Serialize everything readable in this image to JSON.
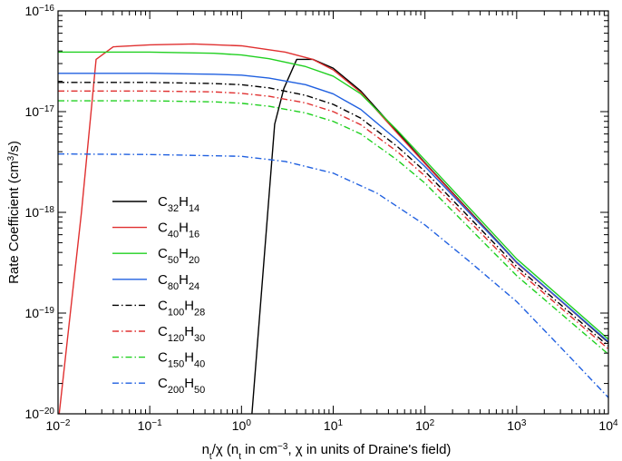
{
  "chart_data": {
    "type": "line",
    "title": "",
    "xlabel": {
      "parts": [
        {
          "t": "n",
          "s": "n"
        },
        {
          "t": "t",
          "s": "sub"
        },
        {
          "t": "/χ (n",
          "s": "n"
        },
        {
          "t": "t",
          "s": "sub"
        },
        {
          "t": " in cm",
          "s": "n"
        },
        {
          "t": "−3",
          "s": "sup"
        },
        {
          "t": ", χ in units of Draine's field)",
          "s": "n"
        }
      ]
    },
    "ylabel": {
      "parts": [
        {
          "t": "Rate Coefficient (cm",
          "s": "n"
        },
        {
          "t": "3",
          "s": "sup"
        },
        {
          "t": "/s)",
          "s": "n"
        }
      ]
    },
    "x_scale": "log",
    "y_scale": "log",
    "xlim": [
      0.01,
      10000
    ],
    "ylim": [
      1e-20,
      1e-16
    ],
    "x_ticks": [
      {
        "value": 0.01,
        "base": "10",
        "exp": "−2"
      },
      {
        "value": 0.1,
        "base": "10",
        "exp": "−1"
      },
      {
        "value": 1,
        "base": "10",
        "exp": "0"
      },
      {
        "value": 10,
        "base": "10",
        "exp": "1"
      },
      {
        "value": 100,
        "base": "10",
        "exp": "2"
      },
      {
        "value": 1000,
        "base": "10",
        "exp": "3"
      },
      {
        "value": 10000,
        "base": "10",
        "exp": "4"
      }
    ],
    "y_ticks": [
      {
        "value": 1e-20,
        "base": "10",
        "exp": "−20"
      },
      {
        "value": 1e-19,
        "base": "10",
        "exp": "−19"
      },
      {
        "value": 1e-18,
        "base": "10",
        "exp": "−18"
      },
      {
        "value": 1e-17,
        "base": "10",
        "exp": "−17"
      },
      {
        "value": 1e-16,
        "base": "10",
        "exp": "−16"
      }
    ],
    "grid": false,
    "legend_position": "lower-left",
    "series": [
      {
        "name_parts": [
          {
            "t": "C",
            "s": "n"
          },
          {
            "t": "32",
            "s": "sub"
          },
          {
            "t": "H",
            "s": "n"
          },
          {
            "t": "14",
            "s": "sub"
          }
        ],
        "color": "#000000",
        "dash": "solid",
        "x": [
          1.3,
          2.3,
          2.9,
          4,
          6,
          10,
          20,
          50,
          100,
          1000,
          10000
        ],
        "y": [
          1e-20,
          7.5e-18,
          1.7e-17,
          3.3e-17,
          3.3e-17,
          2.7e-17,
          1.6e-17,
          6.3e-18,
          3.1e-18,
          3.2e-19,
          5.1e-20
        ]
      },
      {
        "name_parts": [
          {
            "t": "C",
            "s": "n"
          },
          {
            "t": "40",
            "s": "sub"
          },
          {
            "t": "H",
            "s": "n"
          },
          {
            "t": "16",
            "s": "sub"
          }
        ],
        "color": "#e03030",
        "dash": "solid",
        "x": [
          0.0103,
          0.018,
          0.026,
          0.04,
          0.1,
          0.3,
          1,
          3,
          6,
          10,
          20,
          50,
          100,
          1000,
          10000
        ],
        "y": [
          1e-20,
          1e-18,
          3.3e-17,
          4.4e-17,
          4.6e-17,
          4.7e-17,
          4.5e-17,
          3.9e-17,
          3.3e-17,
          2.6e-17,
          1.55e-17,
          6.1e-18,
          3.05e-18,
          3.15e-19,
          5.2e-20
        ]
      },
      {
        "name_parts": [
          {
            "t": "C",
            "s": "n"
          },
          {
            "t": "50",
            "s": "sub"
          },
          {
            "t": "H",
            "s": "n"
          },
          {
            "t": "20",
            "s": "sub"
          }
        ],
        "color": "#20d020",
        "dash": "solid",
        "x": [
          0.01,
          0.1,
          0.5,
          1,
          2,
          5,
          10,
          20,
          50,
          100,
          1000,
          10000
        ],
        "y": [
          3.9e-17,
          3.9e-17,
          3.8e-17,
          3.65e-17,
          3.35e-17,
          2.8e-17,
          2.25e-17,
          1.5e-17,
          6.5e-18,
          3.3e-18,
          3.45e-19,
          5.5e-20
        ]
      },
      {
        "name_parts": [
          {
            "t": "C",
            "s": "n"
          },
          {
            "t": "80",
            "s": "sub"
          },
          {
            "t": "H",
            "s": "n"
          },
          {
            "t": "24",
            "s": "sub"
          }
        ],
        "color": "#2060e0",
        "dash": "solid",
        "x": [
          0.01,
          0.1,
          0.5,
          1,
          2,
          5,
          10,
          20,
          50,
          100,
          1000,
          10000
        ],
        "y": [
          2.4e-17,
          2.4e-17,
          2.35e-17,
          2.3e-17,
          2.15e-17,
          1.85e-17,
          1.5e-17,
          1.05e-17,
          5.2e-18,
          2.85e-18,
          3.2e-19,
          5.2e-20
        ]
      },
      {
        "name_parts": [
          {
            "t": "C",
            "s": "n"
          },
          {
            "t": "100",
            "s": "sub"
          },
          {
            "t": "H",
            "s": "n"
          },
          {
            "t": "28",
            "s": "sub"
          }
        ],
        "color": "#000000",
        "dash": "dashdot",
        "x": [
          0.01,
          0.1,
          0.5,
          1,
          2,
          5,
          10,
          20,
          50,
          100,
          1000,
          10000
        ],
        "y": [
          1.95e-17,
          1.95e-17,
          1.9e-17,
          1.85e-17,
          1.72e-17,
          1.45e-17,
          1.18e-17,
          8.6e-18,
          4.5e-18,
          2.55e-18,
          2.9e-19,
          4.7e-20
        ]
      },
      {
        "name_parts": [
          {
            "t": "C",
            "s": "n"
          },
          {
            "t": "120",
            "s": "sub"
          },
          {
            "t": "H",
            "s": "n"
          },
          {
            "t": "30",
            "s": "sub"
          }
        ],
        "color": "#e03030",
        "dash": "dashdot",
        "x": [
          0.01,
          0.1,
          0.5,
          1,
          2,
          5,
          10,
          20,
          50,
          100,
          1000,
          10000
        ],
        "y": [
          1.6e-17,
          1.6e-17,
          1.57e-17,
          1.52e-17,
          1.42e-17,
          1.22e-17,
          1e-17,
          7.4e-18,
          4e-18,
          2.3e-18,
          2.7e-19,
          4.4e-20
        ]
      },
      {
        "name_parts": [
          {
            "t": "C",
            "s": "n"
          },
          {
            "t": "150",
            "s": "sub"
          },
          {
            "t": "H",
            "s": "n"
          },
          {
            "t": "40",
            "s": "sub"
          }
        ],
        "color": "#20d020",
        "dash": "dashdot",
        "x": [
          0.01,
          0.1,
          0.5,
          1,
          2,
          5,
          10,
          20,
          50,
          100,
          1000,
          10000
        ],
        "y": [
          1.28e-17,
          1.28e-17,
          1.25e-17,
          1.21e-17,
          1.13e-17,
          9.7e-18,
          8e-18,
          6e-18,
          3.3e-18,
          1.95e-18,
          2.35e-19,
          3.9e-20
        ]
      },
      {
        "name_parts": [
          {
            "t": "C",
            "s": "n"
          },
          {
            "t": "200",
            "s": "sub"
          },
          {
            "t": "H",
            "s": "n"
          },
          {
            "t": "50",
            "s": "sub"
          }
        ],
        "color": "#2060e0",
        "dash": "dashdot",
        "x": [
          0.01,
          0.1,
          1,
          3,
          10,
          30,
          100,
          300,
          1000,
          3000,
          10000
        ],
        "y": [
          3.8e-18,
          3.75e-18,
          3.6e-18,
          3.2e-18,
          2.45e-18,
          1.55e-18,
          7.5e-19,
          3.3e-19,
          1.3e-19,
          4.6e-20,
          1.45e-20
        ]
      }
    ]
  }
}
